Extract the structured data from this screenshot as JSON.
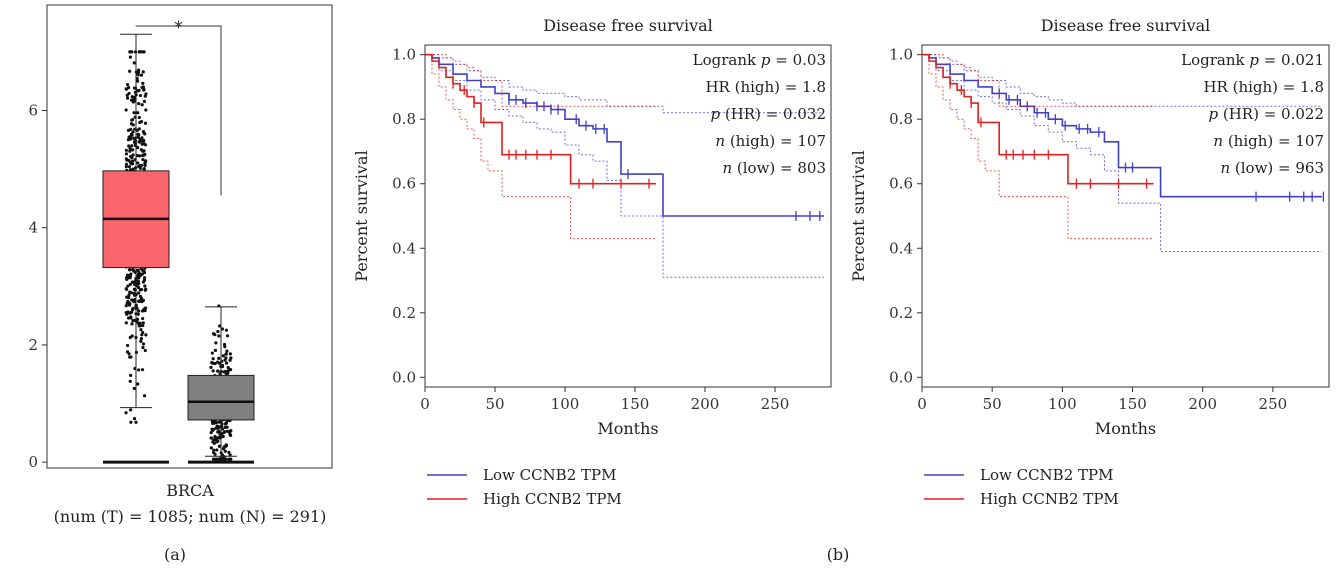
{
  "panels": {
    "a_label": "(a)",
    "b_label": "(b)"
  },
  "chart_data": [
    {
      "type": "boxplot",
      "panel": "a",
      "category_label": "BRCA",
      "category_sublabel": "(num (T) = 1085; num (N) = 291)",
      "significance": "*",
      "ylim": [
        -0.1,
        7.8
      ],
      "yticks": [
        0,
        2,
        4,
        6
      ],
      "yticks_labels": [
        "0",
        "2",
        "4",
        "6"
      ],
      "grid": false,
      "boxes": [
        {
          "group": "T",
          "n": 1085,
          "color": "#f8666b",
          "q1": 3.32,
          "median": 4.15,
          "q3": 4.97,
          "whisker_low": 0.93,
          "whisker_high": 7.3,
          "point_min": 0.68,
          "point_max": 7.0
        },
        {
          "group": "N",
          "n": 291,
          "color": "#7f7f7f",
          "q1": 0.72,
          "median": 1.03,
          "q3": 1.48,
          "whisker_low": 0.1,
          "whisker_high": 2.65,
          "point_min": 0.05,
          "point_max": 4.45
        }
      ]
    },
    {
      "type": "line",
      "subtype": "kaplan-meier",
      "panel": "b",
      "title": "Disease free survival",
      "xlabel": "Months",
      "ylabel": "Percent survival",
      "xlim": [
        0,
        290
      ],
      "ylim": [
        -0.03,
        1.03
      ],
      "xticks": [
        0,
        50,
        100,
        150,
        200,
        250
      ],
      "xticks_labels": [
        "0",
        "50",
        "100",
        "150",
        "200",
        "250"
      ],
      "yticks": [
        0.0,
        0.2,
        0.4,
        0.6,
        0.8,
        1.0
      ],
      "yticks_labels": [
        "0.0",
        "0.2",
        "0.4",
        "0.6",
        "0.8",
        "1.0"
      ],
      "grid": false,
      "stats": [
        {
          "pre": "Logrank ",
          "ital": "p",
          "post": " = 0.03"
        },
        {
          "pre": "HR (high) = 1.8",
          "ital": "",
          "post": ""
        },
        {
          "pre": "",
          "ital": "p",
          "post": " (HR) = 0.032"
        },
        {
          "pre": "",
          "ital": "n",
          "post": " (high) = 107"
        },
        {
          "pre": "",
          "ital": "n",
          "post": " (low) = 803"
        }
      ],
      "legend": {
        "position": "bottom-left",
        "entries": [
          "Low CCNB2 TPM",
          "High CCNB2 TPM"
        ]
      },
      "series": [
        {
          "name": "Low CCNB2 TPM",
          "color": "#4040c8",
          "x": [
            0,
            5,
            10,
            20,
            30,
            40,
            50,
            60,
            70,
            80,
            90,
            100,
            110,
            120,
            130,
            140,
            150,
            170,
            285
          ],
          "y": [
            1.0,
            0.99,
            0.97,
            0.94,
            0.92,
            0.9,
            0.88,
            0.86,
            0.85,
            0.84,
            0.83,
            0.8,
            0.78,
            0.77,
            0.73,
            0.63,
            0.63,
            0.5,
            0.5
          ],
          "ci_low": [
            1.0,
            0.98,
            0.95,
            0.92,
            0.89,
            0.86,
            0.83,
            0.81,
            0.79,
            0.77,
            0.76,
            0.72,
            0.69,
            0.67,
            0.61,
            0.5,
            0.5,
            0.31,
            0.31
          ],
          "ci_high": [
            1.0,
            1.0,
            0.99,
            0.97,
            0.95,
            0.93,
            0.92,
            0.9,
            0.89,
            0.88,
            0.88,
            0.87,
            0.86,
            0.86,
            0.84,
            0.84,
            0.84,
            0.82,
            0.82
          ],
          "censor_x": [
            60,
            65,
            72,
            80,
            85,
            90,
            95,
            108,
            115,
            122,
            128,
            145,
            265,
            275,
            282
          ]
        },
        {
          "name": "High CCNB2 TPM",
          "color": "#e02020",
          "x": [
            0,
            5,
            10,
            15,
            20,
            25,
            30,
            35,
            40,
            45,
            55,
            104,
            165
          ],
          "y": [
            1.0,
            0.98,
            0.96,
            0.93,
            0.91,
            0.89,
            0.87,
            0.85,
            0.79,
            0.79,
            0.69,
            0.6,
            0.6
          ],
          "ci_low": [
            1.0,
            0.94,
            0.9,
            0.86,
            0.83,
            0.8,
            0.77,
            0.74,
            0.67,
            0.64,
            0.56,
            0.43,
            0.43
          ],
          "ci_high": [
            1.0,
            1.0,
            1.0,
            0.99,
            0.98,
            0.97,
            0.96,
            0.95,
            0.92,
            0.92,
            0.84,
            0.84,
            0.84
          ],
          "censor_x": [
            20,
            28,
            35,
            42,
            60,
            65,
            72,
            80,
            90,
            110,
            120,
            140,
            160
          ]
        }
      ]
    },
    {
      "type": "line",
      "subtype": "kaplan-meier",
      "panel": "b",
      "title": "Disease free survival",
      "xlabel": "Months",
      "ylabel": "Percent survival",
      "xlim": [
        0,
        290
      ],
      "ylim": [
        -0.03,
        1.03
      ],
      "xticks": [
        0,
        50,
        100,
        150,
        200,
        250
      ],
      "xticks_labels": [
        "0",
        "50",
        "100",
        "150",
        "200",
        "250"
      ],
      "yticks": [
        0.0,
        0.2,
        0.4,
        0.6,
        0.8,
        1.0
      ],
      "yticks_labels": [
        "0.0",
        "0.2",
        "0.4",
        "0.6",
        "0.8",
        "1.0"
      ],
      "grid": false,
      "stats": [
        {
          "pre": "Logrank ",
          "ital": "p",
          "post": " = 0.021"
        },
        {
          "pre": "HR (high) = 1.8",
          "ital": "",
          "post": ""
        },
        {
          "pre": "",
          "ital": "p",
          "post": " (HR) = 0.022"
        },
        {
          "pre": "",
          "ital": "n",
          "post": " (high) = 107"
        },
        {
          "pre": "",
          "ital": "n",
          "post": " (low) = 963"
        }
      ],
      "legend": {
        "position": "bottom-left",
        "entries": [
          "Low CCNB2 TPM",
          "High CCNB2 TPM"
        ]
      },
      "series": [
        {
          "name": "Low CCNB2 TPM",
          "color": "#4040c8",
          "x": [
            0,
            5,
            10,
            20,
            30,
            40,
            50,
            60,
            70,
            80,
            90,
            100,
            110,
            120,
            130,
            140,
            150,
            170,
            285
          ],
          "y": [
            1.0,
            0.99,
            0.97,
            0.94,
            0.92,
            0.9,
            0.88,
            0.86,
            0.84,
            0.82,
            0.8,
            0.78,
            0.77,
            0.76,
            0.73,
            0.65,
            0.65,
            0.56,
            0.56
          ],
          "ci_low": [
            1.0,
            0.98,
            0.95,
            0.92,
            0.89,
            0.87,
            0.85,
            0.83,
            0.81,
            0.78,
            0.76,
            0.73,
            0.71,
            0.69,
            0.64,
            0.54,
            0.54,
            0.39,
            0.39
          ],
          "ci_high": [
            1.0,
            1.0,
            0.99,
            0.97,
            0.95,
            0.93,
            0.92,
            0.9,
            0.88,
            0.87,
            0.86,
            0.85,
            0.84,
            0.84,
            0.84,
            0.84,
            0.84,
            0.84,
            0.84
          ],
          "censor_x": [
            55,
            62,
            68,
            75,
            82,
            88,
            95,
            102,
            112,
            118,
            126,
            145,
            150,
            238,
            262,
            272,
            278,
            286
          ]
        },
        {
          "name": "High CCNB2 TPM",
          "color": "#e02020",
          "x": [
            0,
            5,
            10,
            15,
            20,
            25,
            30,
            35,
            40,
            45,
            55,
            104,
            165
          ],
          "y": [
            1.0,
            0.98,
            0.96,
            0.93,
            0.91,
            0.89,
            0.87,
            0.85,
            0.79,
            0.79,
            0.69,
            0.6,
            0.6
          ],
          "ci_low": [
            1.0,
            0.94,
            0.9,
            0.86,
            0.83,
            0.8,
            0.77,
            0.74,
            0.67,
            0.64,
            0.56,
            0.43,
            0.43
          ],
          "ci_high": [
            1.0,
            1.0,
            1.0,
            0.99,
            0.98,
            0.97,
            0.96,
            0.95,
            0.92,
            0.92,
            0.84,
            0.84,
            0.84
          ],
          "censor_x": [
            20,
            28,
            35,
            42,
            60,
            65,
            72,
            80,
            90,
            110,
            120,
            140,
            160
          ]
        }
      ]
    }
  ]
}
